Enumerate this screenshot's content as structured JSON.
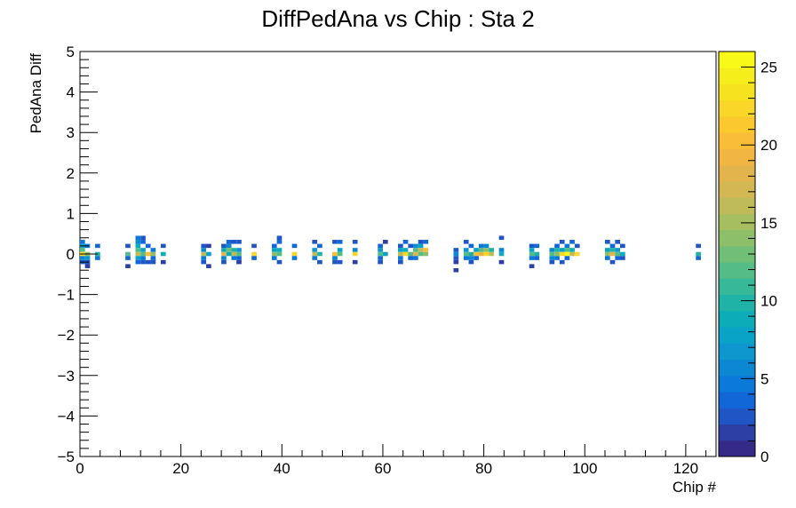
{
  "chart_data": {
    "type": "heatmap",
    "title": "DiffPedAna vs Chip : Sta 2",
    "xlabel": "Chip #",
    "ylabel": "PedAna Diff",
    "xlim": [
      0,
      126
    ],
    "ylim": [
      -5,
      5
    ],
    "x_ticks": [
      {
        "value": 0,
        "label": "0"
      },
      {
        "value": 20,
        "label": "20"
      },
      {
        "value": 40,
        "label": "40"
      },
      {
        "value": 60,
        "label": "60"
      },
      {
        "value": 80,
        "label": "80"
      },
      {
        "value": 100,
        "label": "100"
      },
      {
        "value": 120,
        "label": "120"
      }
    ],
    "y_ticks": [
      {
        "value": -5,
        "label": "−5"
      },
      {
        "value": -4,
        "label": "−4"
      },
      {
        "value": -3,
        "label": "−3"
      },
      {
        "value": -2,
        "label": "−2"
      },
      {
        "value": -1,
        "label": "−1"
      },
      {
        "value": 0,
        "label": "0"
      },
      {
        "value": 1,
        "label": "1"
      },
      {
        "value": 2,
        "label": "2"
      },
      {
        "value": 3,
        "label": "3"
      },
      {
        "value": 4,
        "label": "4"
      },
      {
        "value": 5,
        "label": "5"
      }
    ],
    "colorbar": {
      "zlim": [
        0,
        26
      ],
      "ticks": [
        {
          "value": 0,
          "label": "0"
        },
        {
          "value": 5,
          "label": "5"
        },
        {
          "value": 10,
          "label": "10"
        },
        {
          "value": 15,
          "label": "15"
        },
        {
          "value": 20,
          "label": "20"
        },
        {
          "value": 25,
          "label": "25"
        }
      ],
      "palette": [
        "#352a87",
        "#2d3fa4",
        "#1f55c4",
        "#1267d8",
        "#0b79da",
        "#0c88d3",
        "#0e96cf",
        "#0aa3c8",
        "#0cadb8",
        "#1fb3a8",
        "#37b898",
        "#54bc86",
        "#71bf77",
        "#8dbf6a",
        "#a7be60",
        "#bfbb58",
        "#d3b752",
        "#e3b44b",
        "#f1b541",
        "#f9bd37",
        "#fbc92e",
        "#f9d627",
        "#f6e21f",
        "#f6ee1b",
        "#f8f917"
      ]
    },
    "bin_width_x": 1,
    "bin_width_y": 0.1,
    "bins": [
      [
        0,
        0.3,
        5
      ],
      [
        0,
        0.2,
        8
      ],
      [
        0,
        0.1,
        12
      ],
      [
        0,
        0.0,
        22
      ],
      [
        0,
        -0.1,
        6
      ],
      [
        0,
        -0.2,
        3
      ],
      [
        1,
        0.2,
        5
      ],
      [
        1,
        0.0,
        14
      ],
      [
        1,
        -0.1,
        7
      ],
      [
        1,
        -0.2,
        3
      ],
      [
        1,
        -0.3,
        2
      ],
      [
        3,
        0.2,
        4
      ],
      [
        3,
        0.0,
        10
      ],
      [
        3,
        -0.1,
        5
      ],
      [
        9,
        0.2,
        3
      ],
      [
        9,
        0.0,
        12
      ],
      [
        9,
        -0.1,
        4
      ],
      [
        9,
        -0.3,
        2
      ],
      [
        11,
        0.4,
        5
      ],
      [
        11,
        0.3,
        6
      ],
      [
        11,
        0.2,
        9
      ],
      [
        11,
        0.1,
        12
      ],
      [
        11,
        0.0,
        16
      ],
      [
        11,
        -0.1,
        8
      ],
      [
        11,
        -0.2,
        4
      ],
      [
        12,
        0.4,
        3
      ],
      [
        12,
        0.3,
        4
      ],
      [
        12,
        0.1,
        8
      ],
      [
        12,
        0.0,
        12
      ],
      [
        12,
        -0.1,
        5
      ],
      [
        12,
        -0.2,
        3
      ],
      [
        13,
        0.2,
        4
      ],
      [
        13,
        0.0,
        20
      ],
      [
        13,
        -0.2,
        3
      ],
      [
        14,
        0.1,
        5
      ],
      [
        14,
        0.0,
        14
      ],
      [
        14,
        -0.1,
        4
      ],
      [
        14,
        -0.2,
        3
      ],
      [
        16,
        0.2,
        3
      ],
      [
        16,
        0.0,
        9
      ],
      [
        16,
        -0.2,
        2
      ],
      [
        24,
        0.2,
        3
      ],
      [
        24,
        0.1,
        6
      ],
      [
        24,
        0.0,
        16
      ],
      [
        24,
        -0.1,
        5
      ],
      [
        24,
        -0.2,
        3
      ],
      [
        25,
        0.2,
        2
      ],
      [
        25,
        0.0,
        8
      ],
      [
        25,
        -0.3,
        2
      ],
      [
        28,
        0.2,
        3
      ],
      [
        28,
        0.1,
        9
      ],
      [
        28,
        0.0,
        18
      ],
      [
        28,
        -0.1,
        6
      ],
      [
        28,
        -0.2,
        3
      ],
      [
        29,
        0.3,
        4
      ],
      [
        29,
        0.2,
        6
      ],
      [
        29,
        0.1,
        13
      ],
      [
        29,
        0.0,
        9
      ],
      [
        30,
        0.3,
        3
      ],
      [
        30,
        0.1,
        10
      ],
      [
        30,
        0.0,
        16
      ],
      [
        30,
        -0.1,
        5
      ],
      [
        31,
        0.3,
        3
      ],
      [
        31,
        0.1,
        7
      ],
      [
        31,
        0.0,
        12
      ],
      [
        31,
        -0.1,
        4
      ],
      [
        31,
        -0.2,
        2
      ],
      [
        34,
        0.2,
        3
      ],
      [
        34,
        0.0,
        22
      ],
      [
        34,
        -0.1,
        4
      ],
      [
        38,
        0.2,
        4
      ],
      [
        38,
        0.1,
        8
      ],
      [
        38,
        0.0,
        14
      ],
      [
        38,
        -0.1,
        5
      ],
      [
        39,
        0.4,
        3
      ],
      [
        39,
        0.3,
        4
      ],
      [
        39,
        0.1,
        9
      ],
      [
        39,
        0.0,
        12
      ],
      [
        39,
        -0.2,
        3
      ],
      [
        42,
        0.2,
        4
      ],
      [
        42,
        0.0,
        22
      ],
      [
        42,
        -0.1,
        5
      ],
      [
        46,
        0.3,
        3
      ],
      [
        46,
        0.1,
        7
      ],
      [
        46,
        0.0,
        16
      ],
      [
        46,
        -0.1,
        5
      ],
      [
        47,
        0.2,
        4
      ],
      [
        47,
        0.0,
        10
      ],
      [
        47,
        -0.2,
        3
      ],
      [
        50,
        0.3,
        3
      ],
      [
        50,
        0.0,
        20
      ],
      [
        50,
        -0.1,
        6
      ],
      [
        50,
        -0.2,
        3
      ],
      [
        51,
        0.3,
        4
      ],
      [
        51,
        0.1,
        8
      ],
      [
        51,
        0.0,
        12
      ],
      [
        51,
        -0.2,
        3
      ],
      [
        54,
        0.3,
        3
      ],
      [
        54,
        0.1,
        6
      ],
      [
        54,
        0.0,
        22
      ],
      [
        54,
        -0.2,
        2
      ],
      [
        59,
        0.2,
        4
      ],
      [
        59,
        0.1,
        7
      ],
      [
        59,
        0.0,
        12
      ],
      [
        59,
        -0.1,
        4
      ],
      [
        59,
        -0.2,
        3
      ],
      [
        60,
        0.3,
        2
      ],
      [
        60,
        0.0,
        8
      ],
      [
        63,
        0.2,
        3
      ],
      [
        63,
        0.1,
        8
      ],
      [
        63,
        0.0,
        16
      ],
      [
        63,
        -0.1,
        5
      ],
      [
        63,
        -0.2,
        3
      ],
      [
        64,
        0.3,
        4
      ],
      [
        64,
        0.1,
        9
      ],
      [
        64,
        0.0,
        22
      ],
      [
        65,
        0.2,
        3
      ],
      [
        65,
        0.0,
        12
      ],
      [
        65,
        -0.1,
        4
      ],
      [
        66,
        0.2,
        6
      ],
      [
        66,
        0.1,
        12
      ],
      [
        66,
        0.0,
        18
      ],
      [
        66,
        -0.1,
        5
      ],
      [
        67,
        0.3,
        3
      ],
      [
        67,
        0.2,
        8
      ],
      [
        67,
        0.1,
        16
      ],
      [
        67,
        0.0,
        12
      ],
      [
        68,
        0.3,
        4
      ],
      [
        68,
        0.1,
        20
      ],
      [
        68,
        0.0,
        14
      ],
      [
        74,
        0.1,
        3
      ],
      [
        74,
        0.0,
        6
      ],
      [
        74,
        -0.1,
        3
      ],
      [
        74,
        -0.2,
        2
      ],
      [
        74,
        -0.4,
        2
      ],
      [
        76,
        0.3,
        3
      ],
      [
        76,
        0.1,
        7
      ],
      [
        76,
        0.0,
        12
      ],
      [
        76,
        -0.1,
        5
      ],
      [
        77,
        0.2,
        4
      ],
      [
        77,
        0.0,
        10
      ],
      [
        77,
        -0.1,
        6
      ],
      [
        77,
        -0.2,
        3
      ],
      [
        78,
        0.1,
        8
      ],
      [
        78,
        0.0,
        20
      ],
      [
        78,
        -0.1,
        4
      ],
      [
        79,
        0.2,
        5
      ],
      [
        79,
        0.1,
        12
      ],
      [
        79,
        0.0,
        18
      ],
      [
        80,
        0.2,
        6
      ],
      [
        80,
        0.1,
        14
      ],
      [
        80,
        0.0,
        22
      ],
      [
        81,
        0.1,
        10
      ],
      [
        81,
        0.0,
        16
      ],
      [
        83,
        0.4,
        3
      ],
      [
        83,
        0.1,
        6
      ],
      [
        83,
        0.0,
        9
      ],
      [
        83,
        -0.2,
        2
      ],
      [
        89,
        0.2,
        3
      ],
      [
        89,
        0.1,
        8
      ],
      [
        89,
        0.0,
        12
      ],
      [
        89,
        -0.1,
        5
      ],
      [
        89,
        -0.3,
        2
      ],
      [
        90,
        0.2,
        4
      ],
      [
        90,
        0.0,
        10
      ],
      [
        90,
        -0.1,
        4
      ],
      [
        93,
        0.1,
        6
      ],
      [
        93,
        0.0,
        12
      ],
      [
        93,
        -0.1,
        6
      ],
      [
        93,
        -0.2,
        3
      ],
      [
        94,
        0.2,
        4
      ],
      [
        94,
        0.1,
        10
      ],
      [
        94,
        0.0,
        14
      ],
      [
        94,
        -0.1,
        5
      ],
      [
        95,
        0.3,
        3
      ],
      [
        95,
        0.1,
        8
      ],
      [
        95,
        0.0,
        22
      ],
      [
        95,
        -0.2,
        3
      ],
      [
        96,
        0.2,
        5
      ],
      [
        96,
        0.1,
        12
      ],
      [
        96,
        0.0,
        25
      ],
      [
        96,
        -0.1,
        4
      ],
      [
        97,
        0.3,
        4
      ],
      [
        97,
        0.1,
        9
      ],
      [
        97,
        0.0,
        16
      ],
      [
        98,
        0.2,
        3
      ],
      [
        98,
        0.0,
        22
      ],
      [
        104,
        0.3,
        3
      ],
      [
        104,
        0.1,
        8
      ],
      [
        104,
        0.0,
        14
      ],
      [
        104,
        -0.1,
        5
      ],
      [
        105,
        0.2,
        4
      ],
      [
        105,
        0.1,
        10
      ],
      [
        105,
        0.0,
        18
      ],
      [
        105,
        -0.2,
        3
      ],
      [
        106,
        0.3,
        3
      ],
      [
        106,
        0.1,
        7
      ],
      [
        106,
        0.0,
        12
      ],
      [
        106,
        -0.1,
        4
      ],
      [
        107,
        0.2,
        3
      ],
      [
        107,
        0.0,
        9
      ],
      [
        107,
        -0.1,
        3
      ],
      [
        122,
        0.2,
        3
      ],
      [
        122,
        0.0,
        10
      ],
      [
        122,
        -0.1,
        4
      ]
    ]
  }
}
